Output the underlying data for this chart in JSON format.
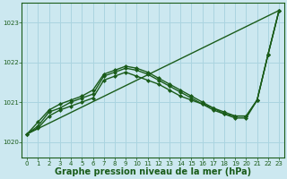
{
  "background_color": "#cce8f0",
  "plot_bg_color": "#cce8f0",
  "grid_color": "#aad4e0",
  "line_color": "#1a5c1a",
  "xlabel": "Graphe pression niveau de la mer (hPa)",
  "xlabel_fontsize": 7,
  "ylim": [
    1019.6,
    1023.5
  ],
  "xlim": [
    -0.5,
    23.5
  ],
  "yticks": [
    1020,
    1021,
    1022,
    1023
  ],
  "xticks": [
    0,
    1,
    2,
    3,
    4,
    5,
    6,
    7,
    8,
    9,
    10,
    11,
    12,
    13,
    14,
    15,
    16,
    17,
    18,
    19,
    20,
    21,
    22,
    23
  ],
  "series": [
    {
      "x": [
        0,
        23
      ],
      "y": [
        1020.2,
        1023.3
      ],
      "marker": null,
      "lw": 1.0
    },
    {
      "x": [
        0,
        1,
        2,
        3,
        4,
        5,
        6,
        7,
        8,
        9,
        10,
        11,
        12,
        13,
        14,
        15,
        16,
        17,
        18,
        19,
        20,
        21,
        22,
        23
      ],
      "y": [
        1020.2,
        1020.35,
        1020.65,
        1020.8,
        1020.9,
        1021.0,
        1021.1,
        1021.55,
        1021.65,
        1021.75,
        1021.65,
        1021.55,
        1021.45,
        1021.3,
        1021.15,
        1021.05,
        1020.95,
        1020.85,
        1020.75,
        1020.65,
        1020.65,
        1021.05,
        1022.2,
        1023.3
      ],
      "marker": "D",
      "markersize": 2.0,
      "lw": 1.0
    },
    {
      "x": [
        0,
        1,
        2,
        3,
        4,
        5,
        6,
        7,
        8,
        9,
        10,
        11,
        12,
        13,
        14,
        15,
        16,
        17,
        18,
        19,
        20,
        21,
        22,
        23
      ],
      "y": [
        1020.2,
        1020.4,
        1020.75,
        1020.85,
        1021.0,
        1021.1,
        1021.2,
        1021.65,
        1021.75,
        1021.85,
        1021.8,
        1021.7,
        1021.55,
        1021.4,
        1021.25,
        1021.1,
        1020.95,
        1020.8,
        1020.7,
        1020.65,
        1020.65,
        1021.05,
        1022.2,
        1023.3
      ],
      "marker": "D",
      "markersize": 2.0,
      "lw": 1.0
    },
    {
      "x": [
        0,
        1,
        2,
        3,
        4,
        5,
        6,
        7,
        8,
        9,
        10,
        11,
        12,
        13,
        14,
        15,
        16,
        17,
        18,
        19,
        20,
        21,
        22,
        23
      ],
      "y": [
        1020.2,
        1020.5,
        1020.8,
        1020.95,
        1021.05,
        1021.15,
        1021.3,
        1021.7,
        1021.8,
        1021.9,
        1021.85,
        1021.75,
        1021.6,
        1021.45,
        1021.3,
        1021.15,
        1021.0,
        1020.85,
        1020.7,
        1020.6,
        1020.6,
        1021.05,
        1022.2,
        1023.3
      ],
      "marker": "D",
      "markersize": 2.0,
      "lw": 1.0
    }
  ]
}
